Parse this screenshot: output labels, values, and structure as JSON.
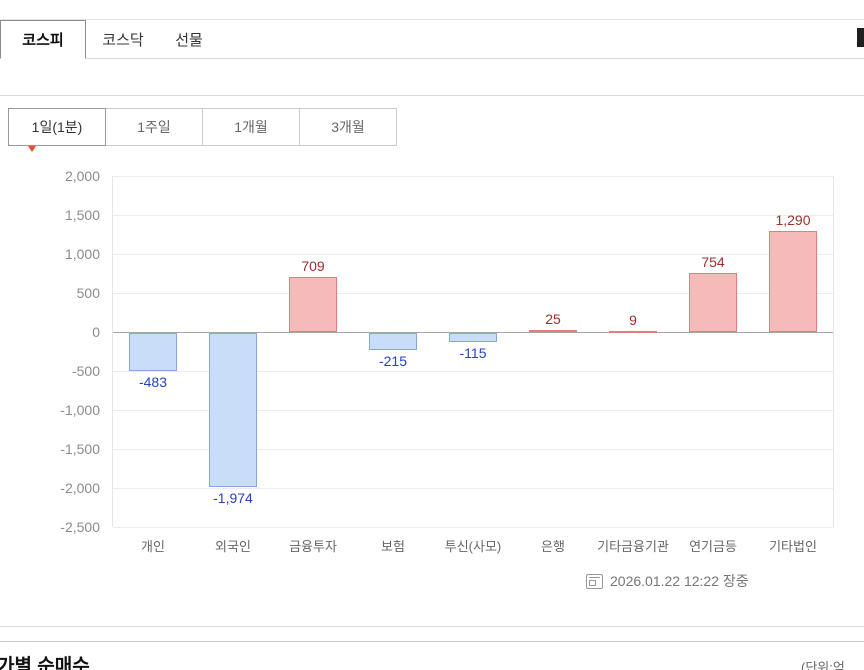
{
  "market_tabs": {
    "items": [
      {
        "label": "코스피",
        "active": true
      },
      {
        "label": "코스닥",
        "active": false
      },
      {
        "label": "선물",
        "active": false
      }
    ]
  },
  "period_tabs": {
    "items": [
      {
        "label": "1일(1분)",
        "active": true
      },
      {
        "label": "1주일",
        "active": false
      },
      {
        "label": "1개월",
        "active": false
      },
      {
        "label": "3개월",
        "active": false
      }
    ]
  },
  "chart_data": {
    "type": "bar",
    "categories": [
      "개인",
      "외국인",
      "금융투자",
      "보험",
      "투신(사모)",
      "은행",
      "기타금융기관",
      "연기금등",
      "기타법인"
    ],
    "values": [
      -483,
      -1974,
      709,
      -215,
      -115,
      25,
      9,
      754,
      1290
    ],
    "value_labels": [
      "-483",
      "-1,974",
      "709",
      "-215",
      "-115",
      "25",
      "9",
      "754",
      "1,290"
    ],
    "ylim": [
      -2500,
      2000
    ],
    "ytick_interval": 500,
    "ytick_labels": [
      "2,000",
      "1,500",
      "1,000",
      "500",
      "0",
      "-500",
      "-1,000",
      "-1,500",
      "-2,000",
      "-2,500"
    ],
    "grid": true,
    "legend": "none",
    "colors": {
      "positive_fill": "#f6baba",
      "positive_border": "#e57d7d",
      "negative_fill": "#c9dcf8",
      "negative_border": "#84a7e0",
      "positive_label": "#9e3030",
      "negative_label": "#2742c8"
    }
  },
  "chart_footer": {
    "timestamp": "2026.01.22 12:22 장중"
  },
  "bottom_section": {
    "title": "가별 순매수",
    "unit_label": "(단위:억"
  }
}
